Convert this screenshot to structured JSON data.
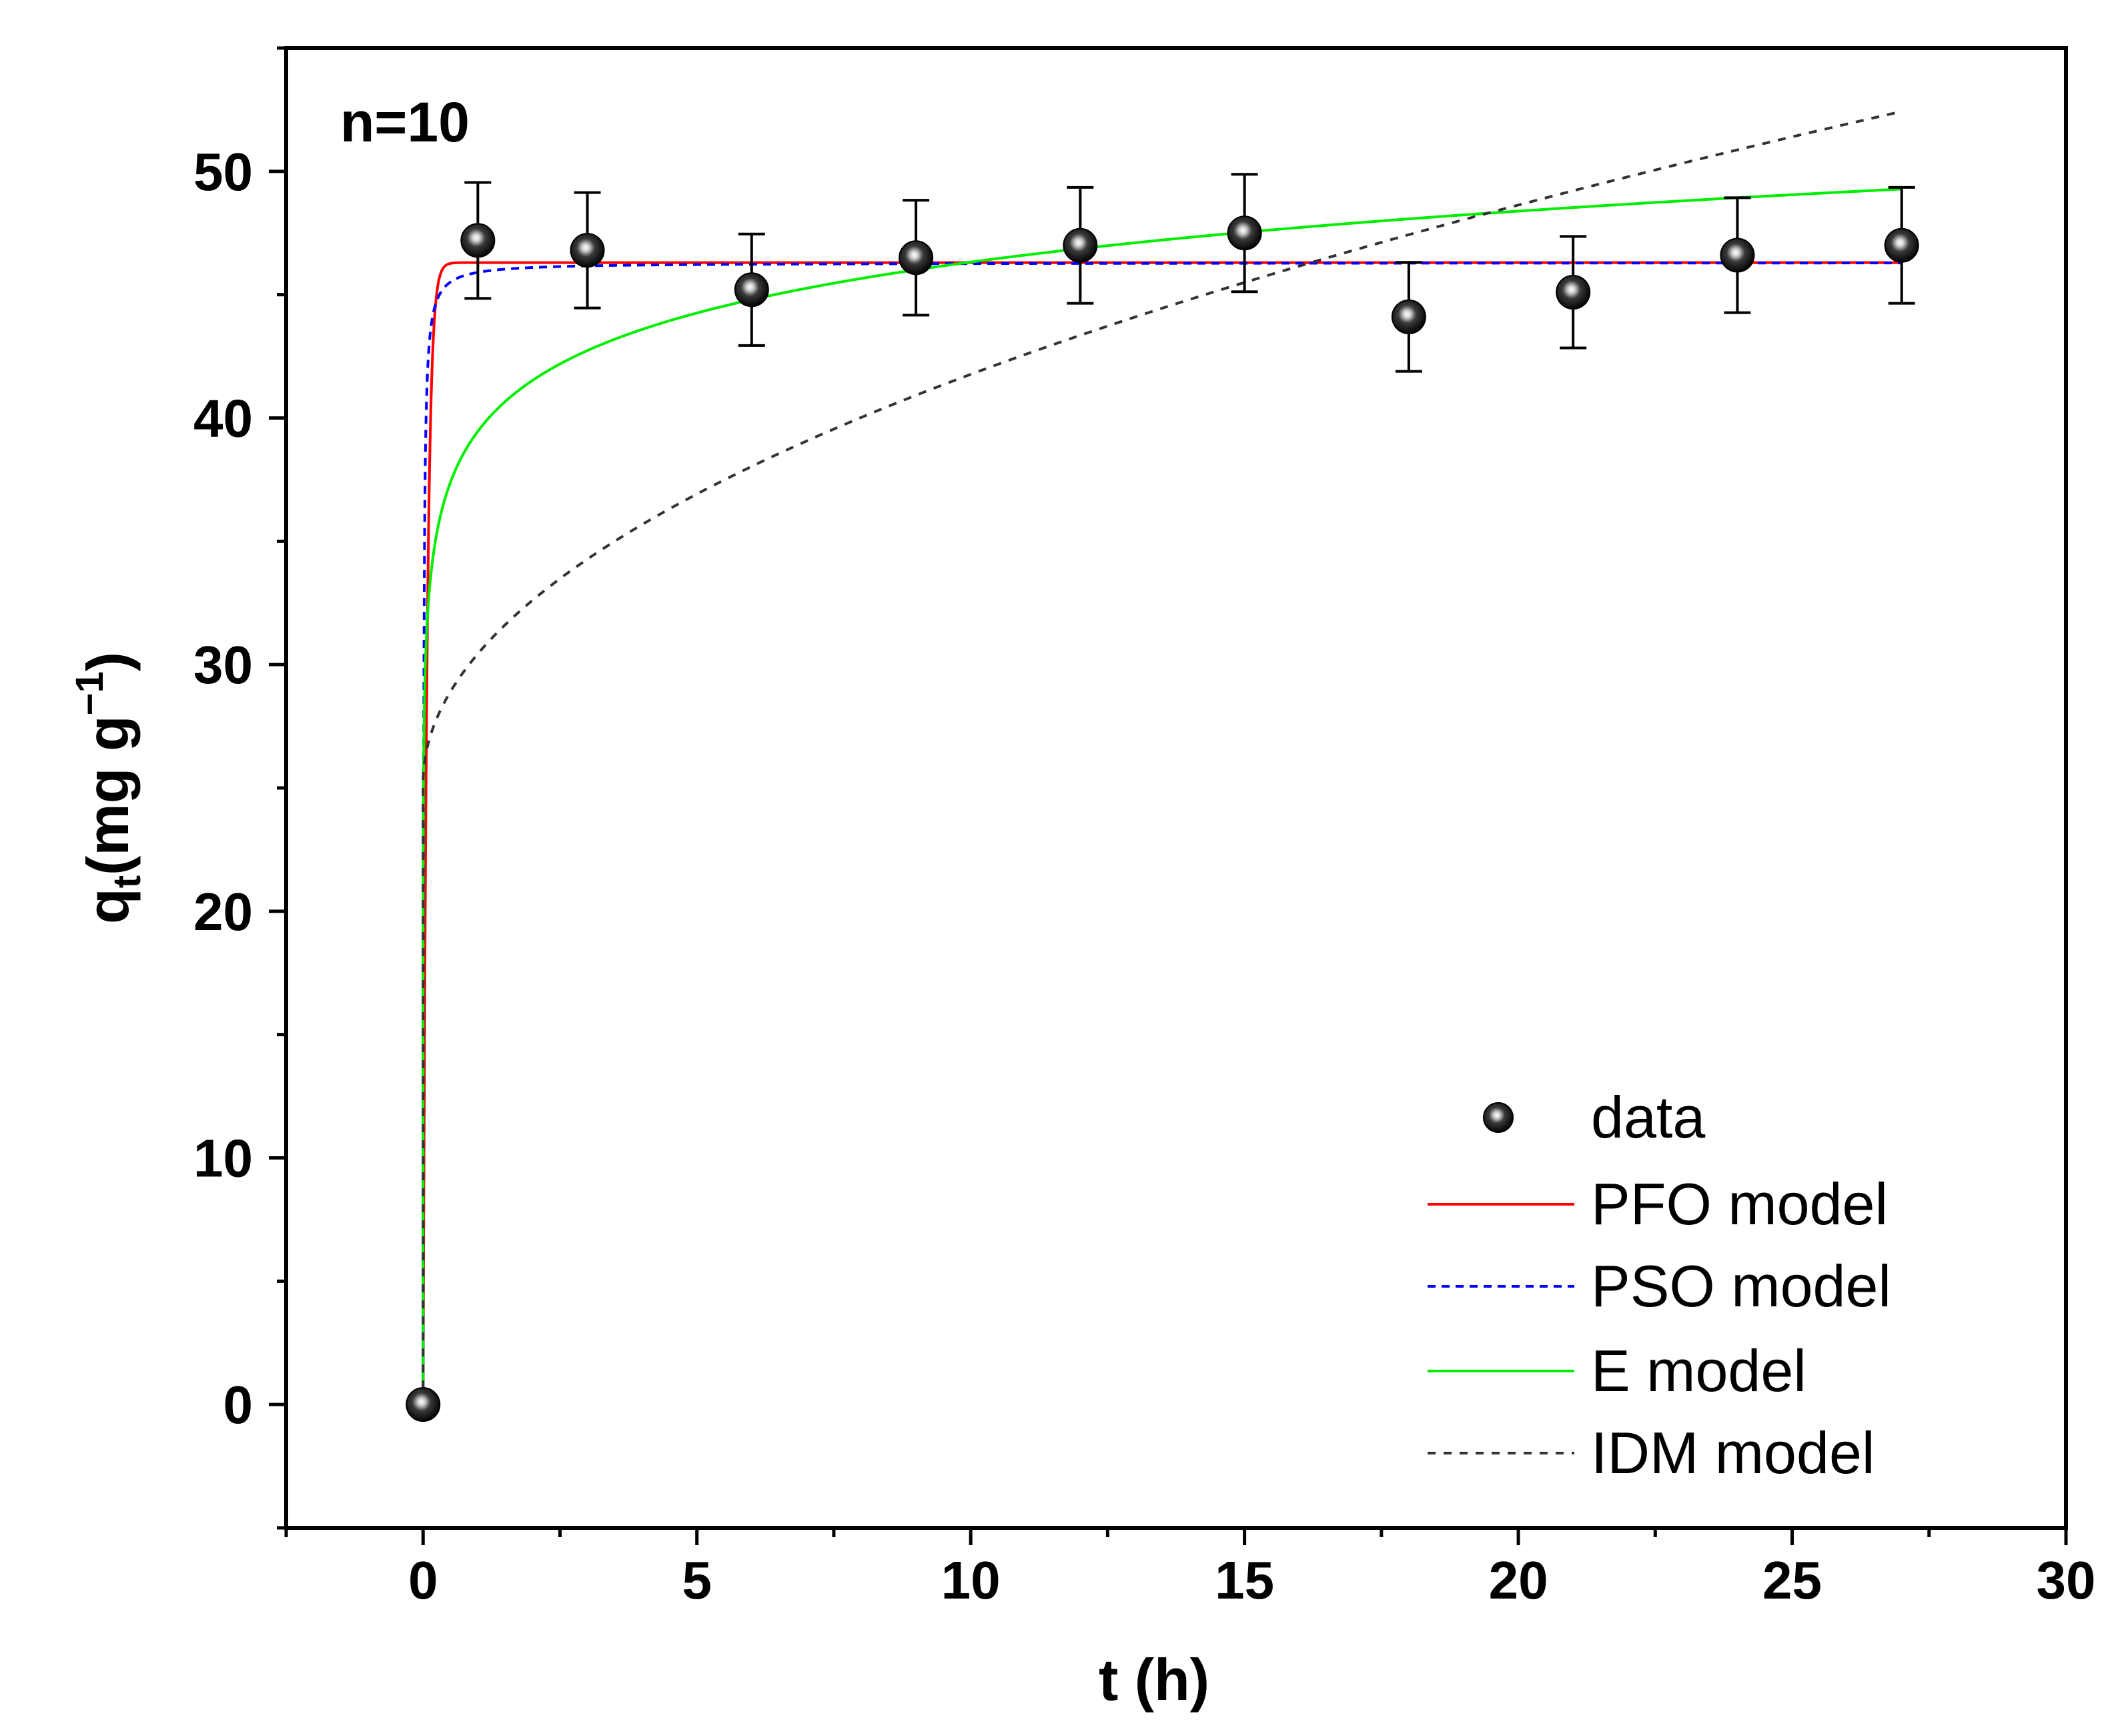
{
  "chart_data": {
    "type": "scatter",
    "title": "",
    "annotation": "n=10",
    "xlabel": "t (h)",
    "ylabel": {
      "main": "q",
      "sub": "t",
      "rest": "(mg g",
      "sup": "−1",
      "close": ")"
    },
    "xlim": [
      -2.5,
      30
    ],
    "ylim": [
      -5,
      55
    ],
    "x_ticks": [
      0,
      5,
      10,
      15,
      20,
      25,
      30
    ],
    "x_tick_labels": [
      "0",
      "5",
      "10",
      "15",
      "20",
      "25",
      "30"
    ],
    "y_ticks": [
      0,
      10,
      20,
      30,
      40,
      50
    ],
    "y_tick_labels": [
      "0",
      "10",
      "20",
      "30",
      "40",
      "50"
    ],
    "grid": false,
    "legend_position": "bottom-right",
    "data_points": {
      "name": "data",
      "x": [
        0,
        1,
        3,
        6,
        9,
        12,
        15,
        18,
        21,
        24,
        27
      ],
      "y": [
        0,
        47.2,
        46.8,
        45.2,
        46.5,
        47.0,
        47.5,
        44.1,
        45.1,
        46.6,
        47.0
      ],
      "error": [
        0,
        2.35,
        2.34,
        2.26,
        2.33,
        2.35,
        2.38,
        2.21,
        2.26,
        2.33,
        2.35
      ]
    },
    "series": [
      {
        "name": "PFO model",
        "color": "#ff0000",
        "dash": "solid",
        "model": "pfo",
        "qe": 46.3,
        "k": 14.5
      },
      {
        "name": "PSO model",
        "color": "#0000ff",
        "dash": "dashed",
        "model": "pso",
        "qe": 46.3,
        "k": 2.5
      },
      {
        "name": "E model",
        "color": "#00ee00",
        "dash": "solid",
        "model": "elovich",
        "a": 39.46,
        "b": 2.98
      },
      {
        "name": "IDM model",
        "color": "#333333",
        "dash": "dashed",
        "model": "idm",
        "kid": 5.24,
        "c": 25.2
      }
    ],
    "x_max_model": 27
  }
}
